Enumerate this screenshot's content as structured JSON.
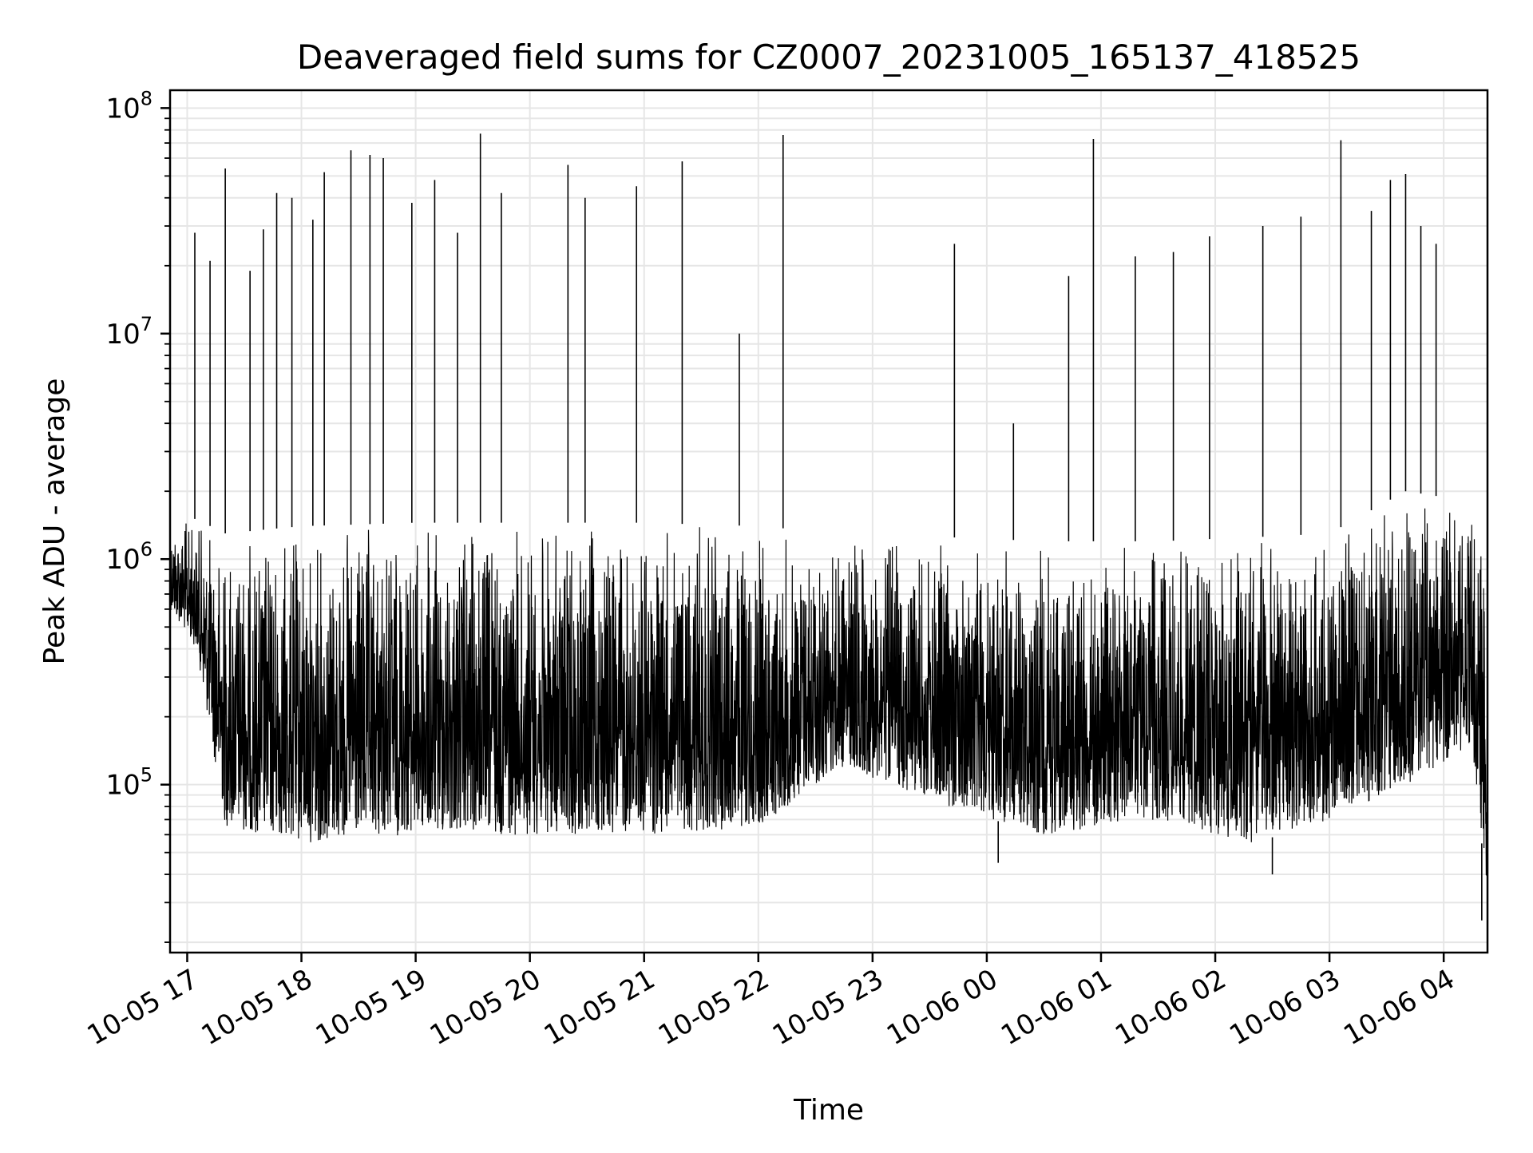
{
  "chart_data": {
    "type": "line",
    "title": "Deaveraged field sums for CZ0007_20231005_165137_418525",
    "xlabel": "Time",
    "ylabel": "Peak ADU - average",
    "yscale": "log",
    "ylim": [
      18000,
      120000000
    ],
    "xlim": [
      "2023-10-05 16:51",
      "2023-10-06 04:23"
    ],
    "grid": true,
    "line_color": "#000000",
    "x_ticks": [
      {
        "value": "2023-10-05 17:00",
        "label": "10-05 17"
      },
      {
        "value": "2023-10-05 18:00",
        "label": "10-05 18"
      },
      {
        "value": "2023-10-05 19:00",
        "label": "10-05 19"
      },
      {
        "value": "2023-10-05 20:00",
        "label": "10-05 20"
      },
      {
        "value": "2023-10-05 21:00",
        "label": "10-05 21"
      },
      {
        "value": "2023-10-05 22:00",
        "label": "10-05 22"
      },
      {
        "value": "2023-10-05 23:00",
        "label": "10-05 23"
      },
      {
        "value": "2023-10-06 00:00",
        "label": "10-06 00"
      },
      {
        "value": "2023-10-06 01:00",
        "label": "10-06 01"
      },
      {
        "value": "2023-10-06 02:00",
        "label": "10-06 02"
      },
      {
        "value": "2023-10-06 03:00",
        "label": "10-06 03"
      },
      {
        "value": "2023-10-06 04:00",
        "label": "10-06 04"
      }
    ],
    "y_ticks": [
      {
        "value": 100000,
        "base": "10",
        "exp": "5"
      },
      {
        "value": 1000000,
        "base": "10",
        "exp": "6"
      },
      {
        "value": 10000000,
        "base": "10",
        "exp": "7"
      },
      {
        "value": 100000000,
        "base": "10",
        "exp": "8"
      }
    ],
    "baseline_profile": {
      "x": [
        "2023-10-05 16:51",
        "2023-10-05 17:05",
        "2023-10-05 17:20",
        "2023-10-05 18:00",
        "2023-10-05 19:00",
        "2023-10-05 20:00",
        "2023-10-05 21:00",
        "2023-10-05 22:00",
        "2023-10-05 22:45",
        "2023-10-05 23:40",
        "2023-10-06 00:30",
        "2023-10-06 01:30",
        "2023-10-06 02:20",
        "2023-10-06 03:00",
        "2023-10-06 03:40",
        "2023-10-06 04:15",
        "2023-10-06 04:23"
      ],
      "upper": [
        1600000,
        1500000,
        1300000,
        1400000,
        1450000,
        1450000,
        1450000,
        1400000,
        1300000,
        1250000,
        1200000,
        1200000,
        1250000,
        1300000,
        2000000,
        1800000,
        1000000
      ],
      "lower": [
        600000,
        400000,
        65000,
        55000,
        60000,
        60000,
        60000,
        65000,
        120000,
        80000,
        60000,
        70000,
        55000,
        70000,
        100000,
        150000,
        30000
      ]
    },
    "spikes": [
      {
        "x": "2023-10-05 17:04",
        "y": 28000000
      },
      {
        "x": "2023-10-05 17:12",
        "y": 21000000
      },
      {
        "x": "2023-10-05 17:20",
        "y": 54000000
      },
      {
        "x": "2023-10-05 17:33",
        "y": 19000000
      },
      {
        "x": "2023-10-05 17:40",
        "y": 29000000
      },
      {
        "x": "2023-10-05 17:47",
        "y": 42000000
      },
      {
        "x": "2023-10-05 17:55",
        "y": 40000000
      },
      {
        "x": "2023-10-05 18:06",
        "y": 32000000
      },
      {
        "x": "2023-10-05 18:12",
        "y": 52000000
      },
      {
        "x": "2023-10-05 18:26",
        "y": 65000000
      },
      {
        "x": "2023-10-05 18:36",
        "y": 62000000
      },
      {
        "x": "2023-10-05 18:43",
        "y": 60000000
      },
      {
        "x": "2023-10-05 18:58",
        "y": 38000000
      },
      {
        "x": "2023-10-05 19:10",
        "y": 48000000
      },
      {
        "x": "2023-10-05 19:22",
        "y": 28000000
      },
      {
        "x": "2023-10-05 19:34",
        "y": 77000000
      },
      {
        "x": "2023-10-05 19:45",
        "y": 42000000
      },
      {
        "x": "2023-10-05 20:20",
        "y": 56000000
      },
      {
        "x": "2023-10-05 20:29",
        "y": 40000000
      },
      {
        "x": "2023-10-05 20:56",
        "y": 45000000
      },
      {
        "x": "2023-10-05 21:20",
        "y": 58000000
      },
      {
        "x": "2023-10-05 21:50",
        "y": 10000000
      },
      {
        "x": "2023-10-05 22:13",
        "y": 76000000
      },
      {
        "x": "2023-10-05 23:43",
        "y": 25000000
      },
      {
        "x": "2023-10-06 00:14",
        "y": 4000000
      },
      {
        "x": "2023-10-06 00:43",
        "y": 18000000
      },
      {
        "x": "2023-10-06 00:56",
        "y": 73000000
      },
      {
        "x": "2023-10-06 01:18",
        "y": 22000000
      },
      {
        "x": "2023-10-06 01:38",
        "y": 23000000
      },
      {
        "x": "2023-10-06 01:57",
        "y": 27000000
      },
      {
        "x": "2023-10-06 02:25",
        "y": 30000000
      },
      {
        "x": "2023-10-06 02:45",
        "y": 33000000
      },
      {
        "x": "2023-10-06 03:06",
        "y": 72000000
      },
      {
        "x": "2023-10-06 03:22",
        "y": 35000000
      },
      {
        "x": "2023-10-06 03:32",
        "y": 48000000
      },
      {
        "x": "2023-10-06 03:40",
        "y": 51000000
      },
      {
        "x": "2023-10-06 03:48",
        "y": 30000000
      },
      {
        "x": "2023-10-06 03:56",
        "y": 25000000
      }
    ],
    "dips": [
      {
        "x": "2023-10-06 02:30",
        "y": 40000
      },
      {
        "x": "2023-10-06 04:20",
        "y": 25000
      },
      {
        "x": "2023-10-06 00:06",
        "y": 45000
      }
    ]
  }
}
